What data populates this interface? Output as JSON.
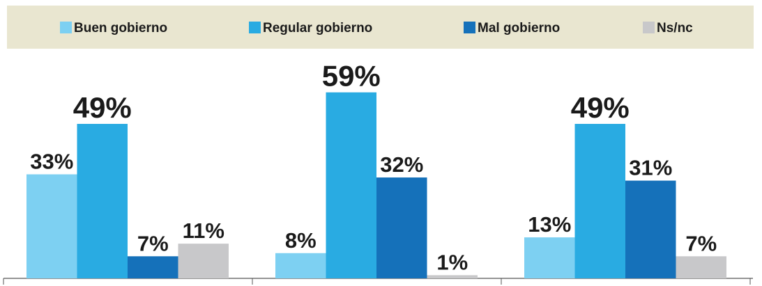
{
  "chart_data": {
    "type": "bar",
    "categories": [
      null,
      null,
      null
    ],
    "series": [
      {
        "name": "Buen gobierno",
        "color": "#7dd0f2",
        "values": [
          33,
          8,
          13
        ],
        "value_labels": [
          "33%",
          "8%",
          "13%"
        ]
      },
      {
        "name": "Regular gobierno",
        "color": "#29abe2",
        "values": [
          49,
          59,
          49
        ],
        "value_labels": [
          "49%",
          "59%",
          "49%"
        ]
      },
      {
        "name": "Mal gobierno",
        "color": "#1571ba",
        "values": [
          7,
          32,
          31
        ],
        "value_labels": [
          "7%",
          "32%",
          "31%"
        ]
      },
      {
        "name": "Ns/nc",
        "color": "#c8c8ca",
        "values": [
          11,
          1,
          7
        ],
        "value_labels": [
          "11%",
          "1%",
          "7%"
        ]
      }
    ],
    "legend": "top"
  }
}
